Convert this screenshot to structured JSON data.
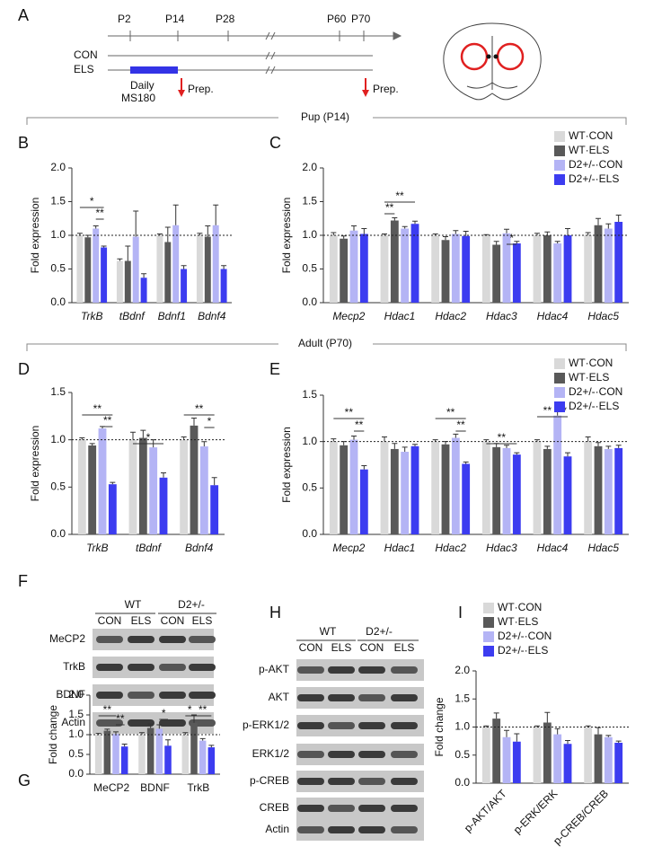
{
  "panel_labels": [
    "A",
    "B",
    "C",
    "D",
    "E",
    "F",
    "G",
    "H",
    "I"
  ],
  "sections": [
    "Pup (P14)",
    "Adult (P70)"
  ],
  "timeline": {
    "ticks": [
      "P2",
      "P14",
      "P28",
      "P60",
      "P70"
    ],
    "rows": [
      "CON",
      "ELS"
    ],
    "treatment": [
      "Daily",
      "MS180"
    ],
    "prep": [
      "Prep.",
      "Prep."
    ]
  },
  "blot_f": {
    "groups": [
      "WT",
      "D2+/-"
    ],
    "lanes": [
      "CON",
      "ELS",
      "CON",
      "ELS"
    ],
    "rows": [
      "MeCP2",
      "TrkB",
      "BDNF",
      "Actin"
    ]
  },
  "blot_h": {
    "groups": [
      "WT",
      "D2+/-"
    ],
    "lanes": [
      "CON",
      "ELS",
      "CON",
      "ELS"
    ],
    "rows": [
      "p-AKT",
      "AKT",
      "p-ERK1/2",
      "ERK1/2",
      "p-CREB",
      "CREB",
      "Actin"
    ]
  },
  "chart_data": [
    {
      "type": "bar",
      "ylabel": "Fold expression",
      "categories": [
        "TrkB",
        "tBdnf",
        "Bdnf1",
        "Bdnf4"
      ],
      "series": [
        {
          "color": "#d9d9d9",
          "values": [
            1.0,
            0.62,
            1.0,
            1.0
          ],
          "errors": [
            0.03,
            0.03,
            0.02,
            0.03
          ]
        },
        {
          "color": "#595959",
          "values": [
            0.97,
            0.62,
            0.9,
            0.98
          ],
          "errors": [
            0.03,
            0.22,
            0.22,
            0.16
          ]
        },
        {
          "color": "#b4b4f5",
          "values": [
            1.1,
            0.98,
            1.15,
            1.15
          ],
          "errors": [
            0.04,
            0.38,
            0.3,
            0.3
          ]
        },
        {
          "color": "#3c3cf0",
          "values": [
            0.82,
            0.37,
            0.5,
            0.5
          ],
          "errors": [
            0.02,
            0.06,
            0.05,
            0.05
          ]
        }
      ],
      "ylim": [
        0,
        2
      ],
      "yticks": [
        {
          "value": 0,
          "label": "0.0"
        },
        0.5,
        {
          "value": 1,
          "label": "1.0"
        },
        1.5,
        {
          "value": 2,
          "label": "2.0"
        }
      ],
      "reference_line": 1,
      "annotations": [
        "*",
        "**"
      ]
    },
    {
      "type": "bar",
      "ylabel": "Fold expression",
      "categories": [
        "Mecp2",
        "Hdac1",
        "Hdac2",
        "Hdac3",
        "Hdac4",
        "Hdac5"
      ],
      "series": [
        {
          "name": "WT·CON",
          "color": "#d9d9d9",
          "values": [
            1.0,
            1.0,
            1.0,
            1.0,
            1.0,
            1.0
          ],
          "errors": [
            0.04,
            0.02,
            0.02,
            0.01,
            0.03,
            0.04
          ]
        },
        {
          "name": "WT·ELS",
          "color": "#595959",
          "values": [
            0.95,
            1.22,
            0.93,
            0.86,
            1.0,
            1.15
          ],
          "errors": [
            0.04,
            0.04,
            0.05,
            0.05,
            0.05,
            0.1
          ]
        },
        {
          "name": "D2+/-·CON",
          "color": "#b4b4f5",
          "values": [
            1.07,
            1.1,
            1.02,
            1.03,
            0.88,
            1.1
          ],
          "errors": [
            0.07,
            0.03,
            0.05,
            0.06,
            0.03,
            0.07
          ]
        },
        {
          "name": "D2+/-·ELS",
          "color": "#3c3cf0",
          "values": [
            1.02,
            1.17,
            0.99,
            0.88,
            1.0,
            1.2
          ],
          "errors": [
            0.08,
            0.04,
            0.07,
            0.03,
            0.1,
            0.1
          ]
        }
      ],
      "ylim": [
        0,
        2
      ],
      "yticks": [
        {
          "value": 0,
          "label": "0.0"
        },
        0.5,
        {
          "value": 1,
          "label": "1.0"
        },
        1.5,
        {
          "value": 2,
          "label": "2.0"
        }
      ],
      "reference_line": 1,
      "annotations": [
        "**",
        "**",
        "*"
      ]
    },
    {
      "type": "bar",
      "ylabel": "Fold expression",
      "categories": [
        "TrkB",
        "tBdnf",
        "Bdnf4"
      ],
      "series": [
        {
          "color": "#d9d9d9",
          "values": [
            1.0,
            1.0,
            1.0
          ],
          "errors": [
            0.02,
            0.08,
            0.03
          ]
        },
        {
          "color": "#595959",
          "values": [
            0.94,
            1.02,
            1.15
          ],
          "errors": [
            0.02,
            0.08,
            0.08
          ]
        },
        {
          "color": "#b4b4f5",
          "values": [
            1.12,
            0.92,
            0.93
          ],
          "errors": [
            0.02,
            0.08,
            0.05
          ]
        },
        {
          "color": "#3c3cf0",
          "values": [
            0.53,
            0.6,
            0.52
          ],
          "errors": [
            0.02,
            0.05,
            0.08
          ]
        }
      ],
      "ylim": [
        0,
        1.5
      ],
      "yticks": [
        {
          "value": 0,
          "label": "0.0"
        },
        0.5,
        {
          "value": 1,
          "label": "1.0"
        },
        1.5
      ],
      "reference_line": 1,
      "annotations": [
        "**",
        "**",
        "*",
        "**",
        "*"
      ]
    },
    {
      "type": "bar",
      "ylabel": "Fold expression",
      "categories": [
        "Mecp2",
        "Hdac1",
        "Hdac2",
        "Hdac3",
        "Hdac4",
        "Hdac5"
      ],
      "series": [
        {
          "name": "WT·CON",
          "color": "#d9d9d9",
          "values": [
            1.0,
            1.0,
            1.0,
            1.0,
            1.0,
            1.0
          ],
          "errors": [
            0.03,
            0.05,
            0.02,
            0.02,
            0.02,
            0.05
          ]
        },
        {
          "name": "WT·ELS",
          "color": "#595959",
          "values": [
            0.96,
            0.92,
            0.97,
            0.94,
            0.92,
            0.95
          ],
          "errors": [
            0.04,
            0.06,
            0.03,
            0.04,
            0.03,
            0.04
          ]
        },
        {
          "name": "D2+/-·CON",
          "color": "#b4b4f5",
          "values": [
            1.02,
            0.89,
            1.04,
            0.93,
            1.28,
            0.92
          ],
          "errors": [
            0.04,
            0.05,
            0.04,
            0.03,
            0.05,
            0.03
          ]
        },
        {
          "name": "D2+/-·ELS",
          "color": "#3c3cf0",
          "values": [
            0.7,
            0.95,
            0.76,
            0.86,
            0.84,
            0.93
          ],
          "errors": [
            0.04,
            0.02,
            0.02,
            0.02,
            0.04,
            0.03
          ]
        }
      ],
      "ylim": [
        0,
        1.5
      ],
      "yticks": [
        {
          "value": 0,
          "label": "0.0"
        },
        0.5,
        {
          "value": 1,
          "label": "1.0"
        },
        1.5
      ],
      "reference_line": 1,
      "annotations": [
        "**",
        "**",
        "**",
        "**",
        "**",
        "**",
        "**"
      ]
    },
    {
      "type": "bar",
      "ylabel": "Fold change",
      "categories": [
        "MeCP2",
        "BDNF",
        "TrkB"
      ],
      "series": [
        {
          "color": "#d9d9d9",
          "values": [
            1.0,
            1.0,
            1.0
          ],
          "errors": [
            0.03,
            0.05,
            0.05
          ]
        },
        {
          "color": "#595959",
          "values": [
            1.1,
            1.17,
            1.3
          ],
          "errors": [
            0.04,
            0.1,
            0.2
          ]
        },
        {
          "color": "#b4b4f5",
          "values": [
            1.02,
            1.15,
            0.85
          ],
          "errors": [
            0.05,
            0.1,
            0.05
          ]
        },
        {
          "color": "#3c3cf0",
          "values": [
            0.7,
            0.72,
            0.68
          ],
          "errors": [
            0.06,
            0.15,
            0.05
          ]
        }
      ],
      "ylim": [
        0,
        2
      ],
      "yticks": [
        {
          "value": 0,
          "label": "0.0"
        },
        0.5,
        {
          "value": 1,
          "label": "1.0"
        },
        1.5,
        {
          "value": 2,
          "label": "2.0"
        }
      ],
      "reference_line": 1,
      "annotations": [
        "**",
        "**",
        "*",
        "*",
        "**"
      ]
    },
    {
      "type": "bar",
      "ylabel": "Fold change",
      "categories": [
        "p-AKT/AKT",
        "p-ERK/ERK",
        "p-CREB/CREB"
      ],
      "series": [
        {
          "name": "WT·CON",
          "color": "#d9d9d9",
          "values": [
            1.0,
            1.0,
            1.0
          ],
          "errors": [
            0.02,
            0.02,
            0.02
          ]
        },
        {
          "name": "WT·ELS",
          "color": "#595959",
          "values": [
            1.15,
            1.08,
            0.87
          ],
          "errors": [
            0.1,
            0.18,
            0.12
          ]
        },
        {
          "name": "D2+/-·CON",
          "color": "#b4b4f5",
          "values": [
            0.82,
            0.87,
            0.82
          ],
          "errors": [
            0.12,
            0.1,
            0.03
          ]
        },
        {
          "name": "D2+/-·ELS",
          "color": "#3c3cf0",
          "values": [
            0.74,
            0.7,
            0.72
          ],
          "errors": [
            0.14,
            0.06,
            0.03
          ]
        }
      ],
      "ylim": [
        0,
        2
      ],
      "yticks": [
        {
          "value": 0,
          "label": "0.0"
        },
        0.5,
        {
          "value": 1,
          "label": "1.0"
        },
        1.5,
        {
          "value": 2,
          "label": "2.0"
        }
      ],
      "reference_line": 1
    }
  ]
}
